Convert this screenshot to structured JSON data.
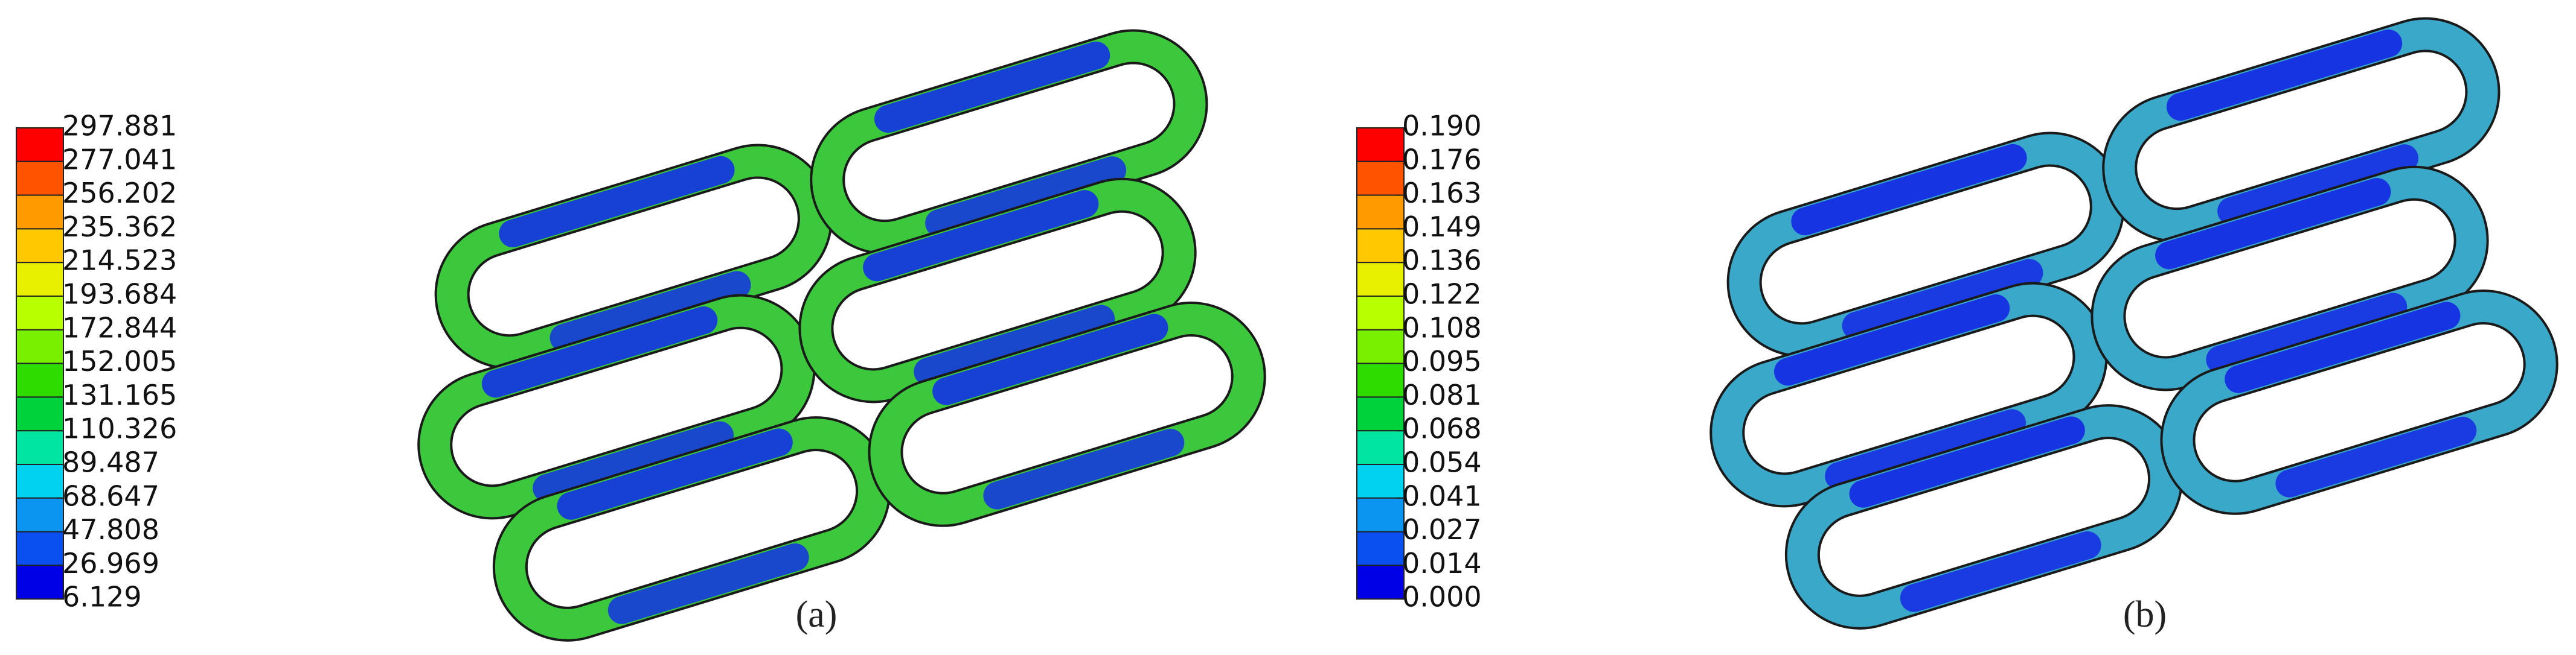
{
  "panels": [
    {
      "legend": {
        "labels": [
          "297.881",
          "277.041",
          "256.202",
          "235.362",
          "214.523",
          "193.684",
          "172.844",
          "152.005",
          "131.165",
          "110.326",
          "89.487",
          "68.647",
          "47.808",
          "26.969",
          "6.129"
        ]
      },
      "caption": "(a)"
    },
    {
      "legend": {
        "labels": [
          "0.190",
          "0.176",
          "0.163",
          "0.149",
          "0.136",
          "0.122",
          "0.108",
          "0.095",
          "0.081",
          "0.068",
          "0.054",
          "0.041",
          "0.027",
          "0.014",
          "0.000"
        ]
      },
      "caption": "(b)"
    }
  ],
  "legend_colors": [
    "#ff0000",
    "#ff5300",
    "#ff9a00",
    "#ffc800",
    "#e8f000",
    "#b8ff00",
    "#78f000",
    "#2fdc00",
    "#00d23c",
    "#00e6a0",
    "#00d2f0",
    "#0a96f0",
    "#0a50f0",
    "#0000e6"
  ]
}
